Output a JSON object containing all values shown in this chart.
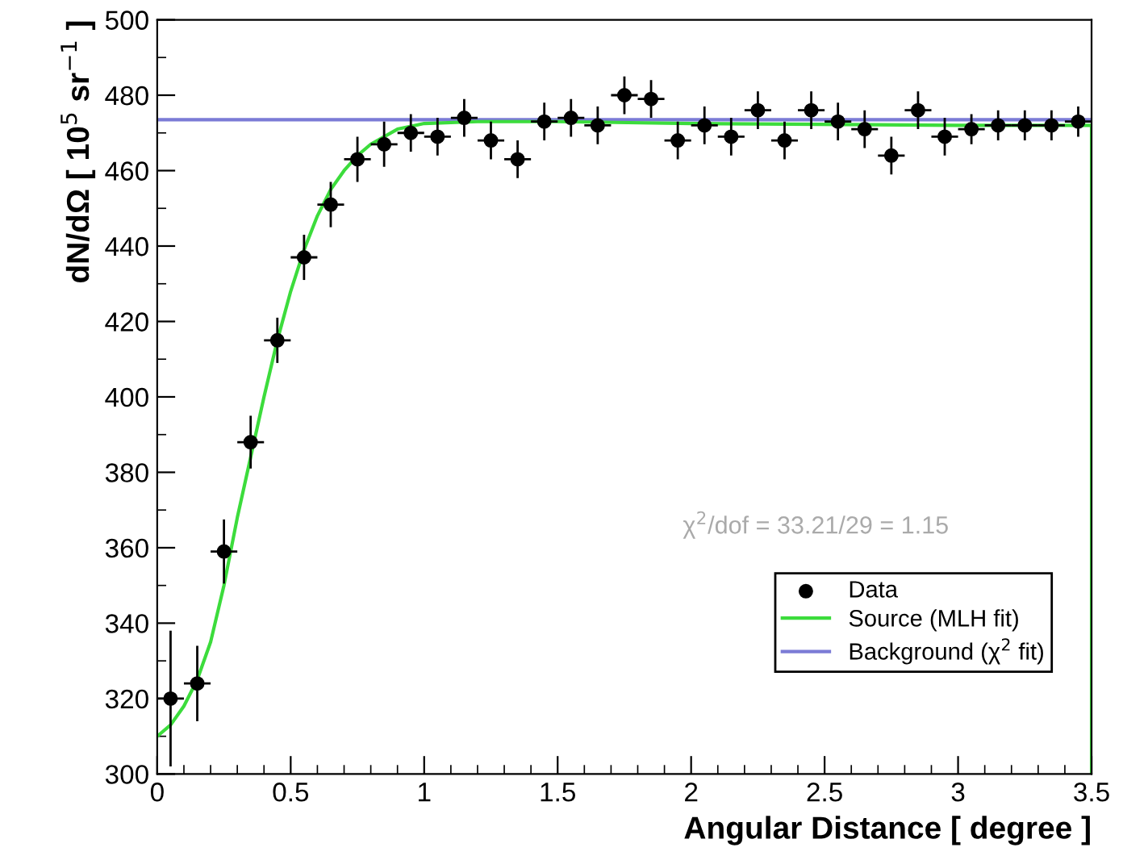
{
  "chart_data": {
    "type": "scatter",
    "xlabel": "Angular Distance [ degree ]",
    "ylabel": "dN/dΩ [ 10$^{5}$ sr$^{−1}$ ]",
    "xlim": [
      0,
      3.5
    ],
    "ylim": [
      300,
      500
    ],
    "xticks": [
      0,
      0.5,
      1,
      1.5,
      2,
      2.5,
      3,
      3.5
    ],
    "yticks": [
      300,
      320,
      340,
      360,
      380,
      400,
      420,
      440,
      460,
      480,
      500
    ],
    "grid": false,
    "legend": "bottom right",
    "annotations": [
      "χ$^{2}$/dof = 33.21/29 = 1.15"
    ],
    "series": [
      {
        "name": "Background (χ$^{2}$ fit)",
        "type": "line",
        "color": "#7b7bd6",
        "marker": "none",
        "x": [
          0,
          3.5
        ],
        "values": [
          473.5,
          473.5
        ]
      },
      {
        "name": "Source (MLH fit)",
        "type": "line",
        "color": "#3cdc3c",
        "marker": "none",
        "x": [
          0,
          0.05,
          0.1,
          0.15,
          0.2,
          0.25,
          0.3,
          0.35,
          0.4,
          0.45,
          0.5,
          0.55,
          0.6,
          0.65,
          0.7,
          0.75,
          0.8,
          0.9,
          1.0,
          1.2,
          1.5,
          2.0,
          3.0,
          3.5,
          3.5
        ],
        "values": [
          310,
          313,
          318,
          325,
          335,
          350,
          368,
          384,
          400,
          415,
          428,
          439,
          448,
          455,
          460,
          464,
          467,
          471,
          472.5,
          473,
          473,
          472.5,
          472,
          472,
          300
        ]
      },
      {
        "name": "Data",
        "color": "#000000",
        "marker": "circle",
        "x": [
          0.05,
          0.15,
          0.25,
          0.35,
          0.45,
          0.55,
          0.65,
          0.75,
          0.85,
          0.95,
          1.05,
          1.15,
          1.25,
          1.35,
          1.45,
          1.55,
          1.65,
          1.75,
          1.85,
          1.95,
          2.05,
          2.15,
          2.25,
          2.35,
          2.45,
          2.55,
          2.65,
          2.75,
          2.85,
          2.95,
          3.05,
          3.15,
          3.25,
          3.35,
          3.45
        ],
        "values": [
          320,
          324,
          359,
          388,
          415,
          437,
          451,
          463,
          467,
          470,
          469,
          474,
          468,
          463,
          473,
          474,
          472,
          480,
          479,
          468,
          472,
          469,
          476,
          468,
          476,
          473,
          471,
          464,
          476,
          469,
          471,
          472,
          472,
          472,
          473
        ],
        "errors": [
          18,
          10,
          8.5,
          7,
          6,
          6,
          6,
          6,
          6,
          5,
          5,
          5,
          5,
          5,
          5,
          5,
          5,
          5,
          5,
          5,
          5,
          5,
          5,
          5,
          5,
          5,
          5,
          5,
          5,
          5,
          4,
          4,
          4,
          4,
          4
        ],
        "xerrors": [
          0.05,
          0.05,
          0.05,
          0.05,
          0.05,
          0.05,
          0.05,
          0.05,
          0.05,
          0.05,
          0.05,
          0.05,
          0.05,
          0.05,
          0.05,
          0.05,
          0.05,
          0.05,
          0.05,
          0.05,
          0.05,
          0.05,
          0.05,
          0.05,
          0.05,
          0.05,
          0.05,
          0.05,
          0.05,
          0.05,
          0.05,
          0.05,
          0.05,
          0.05,
          0.05
        ]
      }
    ]
  }
}
